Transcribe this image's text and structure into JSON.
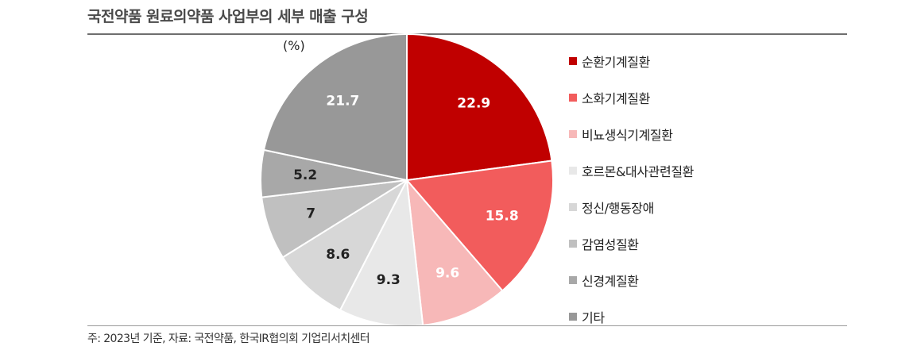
{
  "title": "국전약품 원료의약품 사업부의 세부 매출 구성",
  "footnote": "주: 2023년 기준, 자료: 국전약품, 한국IR협의회 기업리서치센터",
  "chart_data": {
    "type": "pie",
    "unit_label": "(%)",
    "start_angle": "12 o'clock",
    "direction": "clockwise",
    "legend_position": "right",
    "categories": [
      "순환기계질환",
      "소화기계질환",
      "비뇨생식기계질환",
      "호르몬&대사관련질환",
      "정신/행동장애",
      "감염성질환",
      "신경계질환",
      "기타"
    ],
    "values": [
      22.9,
      15.8,
      9.6,
      9.3,
      8.6,
      7,
      5.2,
      21.7
    ],
    "labels": [
      "22.9",
      "15.8",
      "9.6",
      "9.3",
      "8.6",
      "7",
      "5.2",
      "21.7"
    ],
    "colors": [
      "#c00000",
      "#f25c5c",
      "#f7b8b8",
      "#e8e8e8",
      "#d7d7d7",
      "#c0c0c0",
      "#a8a8a8",
      "#989898"
    ],
    "label_colors": [
      "#ffffff",
      "#ffffff",
      "#ffffff",
      "#222222",
      "#222222",
      "#222222",
      "#222222",
      "#ffffff"
    ]
  }
}
